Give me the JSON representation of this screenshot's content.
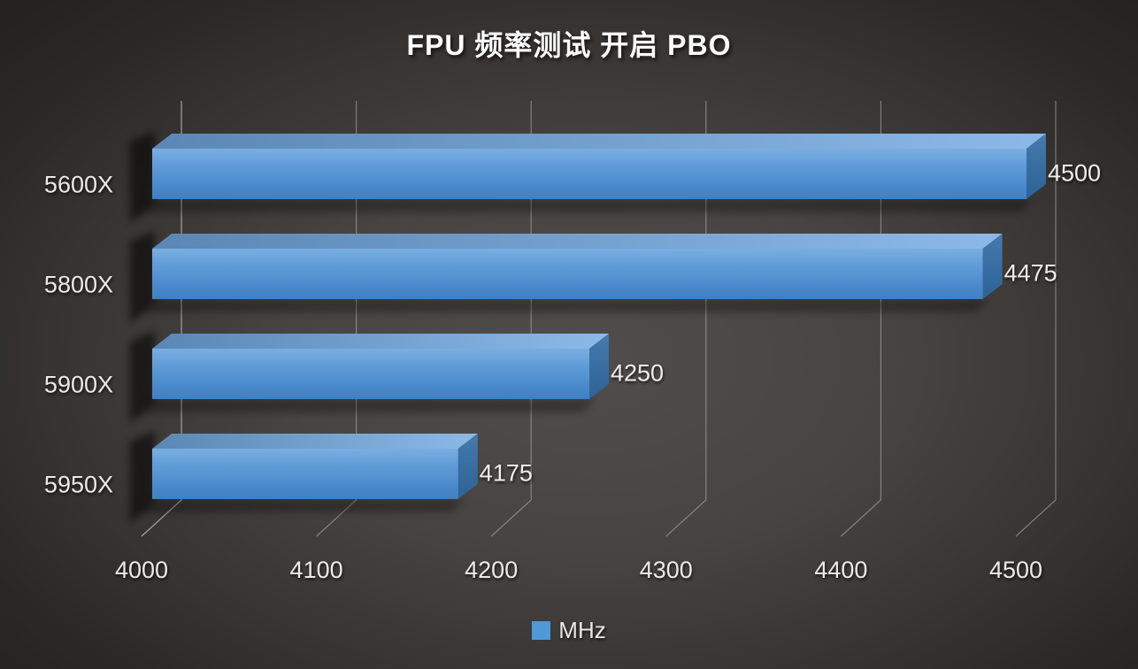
{
  "page": {
    "background_theme": "dark-charcoal-radial-gradient",
    "bg_center_color": "#504d4a",
    "bg_edge_color": "#252321",
    "text_color": "#eceae8"
  },
  "chart_data": {
    "type": "bar",
    "orientation": "horizontal",
    "style": "3d",
    "title": "FPU 频率测试 开启 PBO",
    "categories": [
      "5600X",
      "5800X",
      "5900X",
      "5950X"
    ],
    "series": [
      {
        "name": "MHz",
        "values": [
          4500,
          4475,
          4250,
          4175
        ],
        "color": "#4e9ad8"
      }
    ],
    "data_labels_shown": true,
    "xlabel": "",
    "ylabel": "",
    "xlim": [
      4000,
      4500
    ],
    "x_ticks": [
      "4000",
      "4100",
      "4200",
      "4300",
      "4400",
      "4500"
    ],
    "grid": true,
    "gridline_color": "#b9b6b2",
    "legend": {
      "position": "bottom",
      "entries": [
        {
          "label": "MHz",
          "color": "#4e9ad8"
        }
      ]
    },
    "bar_style": {
      "front": [
        "#79afe2",
        "#609bd8",
        "#4b8bcd",
        "#3f80c2"
      ],
      "top": [
        "#5b87b4",
        "#8cb9e7"
      ],
      "side": [
        "#447aaf",
        "#2d6295"
      ]
    }
  }
}
